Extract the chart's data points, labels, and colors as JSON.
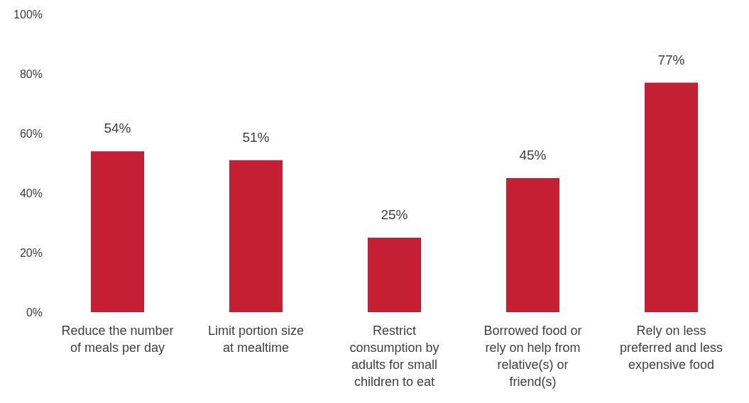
{
  "chart_data": {
    "type": "bar",
    "categories": [
      "Reduce the number of meals per day",
      "Limit portion size at mealtime",
      "Restrict consumption by adults for small children to eat",
      "Borrowed food or rely on help from relative(s) or friend(s)",
      "Rely on less preferred and less expensive food"
    ],
    "values": [
      54,
      51,
      25,
      45,
      77
    ],
    "value_labels": [
      "54%",
      "51%",
      "25%",
      "45%",
      "77%"
    ],
    "color": "#c41f33",
    "ylim": [
      0,
      100
    ],
    "yticks": [
      {
        "value": 0,
        "label": "0%"
      },
      {
        "value": 20,
        "label": "20%"
      },
      {
        "value": 40,
        "label": "40%"
      },
      {
        "value": 60,
        "label": "60%"
      },
      {
        "value": 80,
        "label": "80%"
      },
      {
        "value": 100,
        "label": "100%"
      }
    ],
    "grid": false,
    "legend": false
  }
}
